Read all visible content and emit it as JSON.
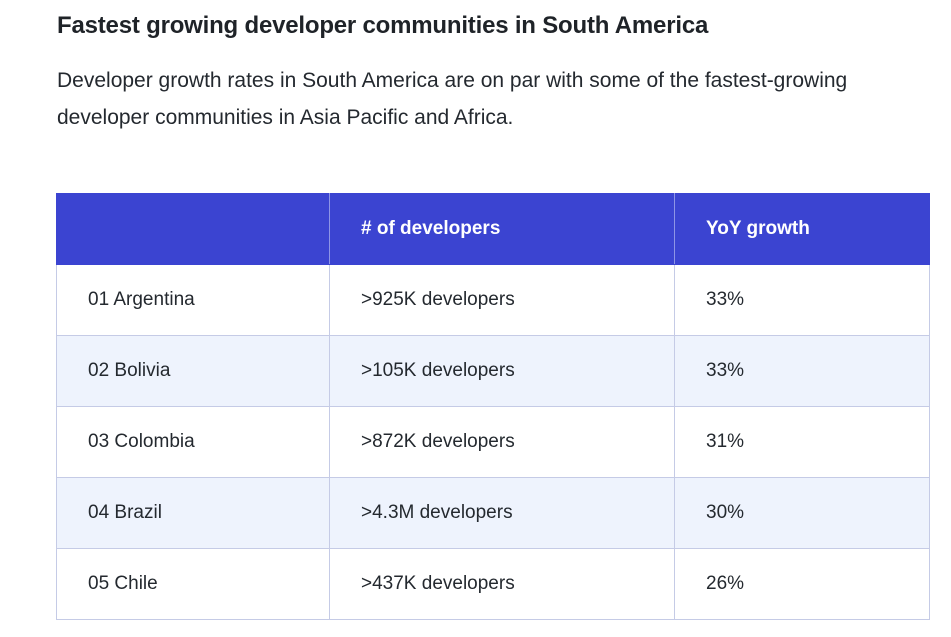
{
  "heading": "Fastest growing developer communities in South America",
  "intro": "Developer growth rates in South America are on par with some of the fastest-growing developer communities in Asia Pacific and Africa.",
  "table": {
    "headers": [
      "",
      "# of developers",
      "YoY growth"
    ],
    "rows": [
      {
        "country": "01 Argentina",
        "developers": ">925K developers",
        "growth": "33%"
      },
      {
        "country": "02 Bolivia",
        "developers": ">105K developers",
        "growth": "33%"
      },
      {
        "country": "03 Colombia",
        "developers": ">872K developers",
        "growth": "31%"
      },
      {
        "country": "04 Brazil",
        "developers": ">4.3M developers",
        "growth": "30%"
      },
      {
        "country": "05 Chile",
        "developers": ">437K developers",
        "growth": "26%"
      }
    ]
  },
  "colors": {
    "header_bg": "#3b44d1",
    "alt_row_bg": "#eef3fd",
    "border": "#c5cbe6"
  }
}
